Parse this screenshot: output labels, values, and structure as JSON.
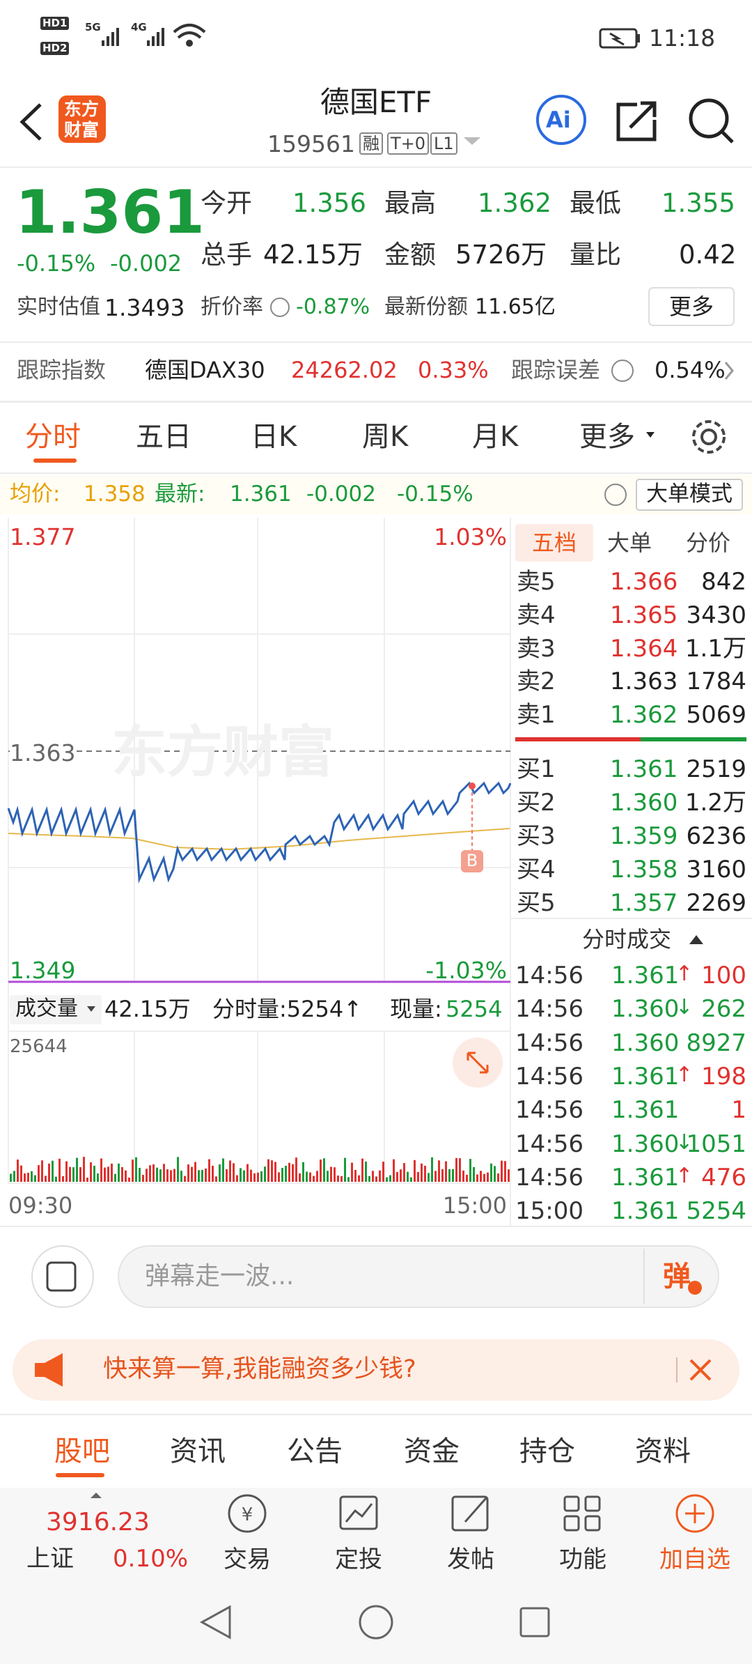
{
  "status": {
    "sims": [
      "HD1",
      "HD2"
    ],
    "network": [
      "5G",
      "4G"
    ],
    "time": "11:18"
  },
  "header": {
    "logo": [
      "东方",
      "财富"
    ],
    "title": "德国ETF",
    "code": "159561",
    "tags": [
      "融",
      "T+0",
      "L1"
    ],
    "ai": "Ai"
  },
  "quote": {
    "price": "1.361",
    "change_pct": "-0.15%",
    "change": "-0.002",
    "fields": [
      {
        "label": "今开",
        "value": "1.356"
      },
      {
        "label": "最高",
        "value": "1.362"
      },
      {
        "label": "最低",
        "value": "1.355"
      },
      {
        "label": "总手",
        "value": "42.15万"
      },
      {
        "label": "金额",
        "value": "5726万"
      },
      {
        "label": "量比",
        "value": "0.42"
      }
    ],
    "estimate": {
      "label": "实时估值",
      "value": "1.3493"
    },
    "premium": {
      "label": "折价率",
      "value": "-0.87%"
    },
    "shares": {
      "label": "最新份额",
      "value": "11.65亿"
    },
    "more": "更多"
  },
  "tracking": {
    "label": "跟踪指数",
    "index": "德国DAX30",
    "value": "24262.02",
    "pct": "0.33%",
    "error_label": "跟踪误差",
    "error": "0.54%"
  },
  "tabs": [
    "分时",
    "五日",
    "日K",
    "周K",
    "月K",
    "更多"
  ],
  "info": {
    "avg_label": "均价:",
    "avg": "1.358",
    "last_label": "最新:",
    "last": "1.361",
    "change": "-0.002",
    "pct": "-0.15%",
    "mode": "大单模式"
  },
  "chart": {
    "high": "1.377",
    "high_pct": "1.03%",
    "mid": "1.363",
    "low": "1.349",
    "low_pct": "-1.03%",
    "watermark": "东方财富",
    "marker": "B"
  },
  "volume": {
    "label": "成交量",
    "total": "42.15万",
    "bar_label": "分时量:5254↑",
    "cur_label": "现量:",
    "cur": "5254",
    "max": "25644",
    "start": "09:30",
    "end": "15:00"
  },
  "orderbook": {
    "tabs": [
      "五档",
      "大单",
      "分价"
    ],
    "asks": [
      {
        "label": "卖5",
        "price": "1.366",
        "vol": "842",
        "color": "#e0322f"
      },
      {
        "label": "卖4",
        "price": "1.365",
        "vol": "3430",
        "color": "#e0322f"
      },
      {
        "label": "卖3",
        "price": "1.364",
        "vol": "1.1万",
        "color": "#e0322f"
      },
      {
        "label": "卖2",
        "price": "1.363",
        "vol": "1784",
        "color": "#222222"
      },
      {
        "label": "卖1",
        "price": "1.362",
        "vol": "5069",
        "color": "#1a9a3c"
      }
    ],
    "bids": [
      {
        "label": "买1",
        "price": "1.361",
        "vol": "2519",
        "color": "#1a9a3c"
      },
      {
        "label": "买2",
        "price": "1.360",
        "vol": "1.2万",
        "color": "#1a9a3c"
      },
      {
        "label": "买3",
        "price": "1.359",
        "vol": "6236",
        "color": "#1a9a3c"
      },
      {
        "label": "买4",
        "price": "1.358",
        "vol": "3160",
        "color": "#1a9a3c"
      },
      {
        "label": "买5",
        "price": "1.357",
        "vol": "2269",
        "color": "#1a9a3c"
      }
    ]
  },
  "trades": {
    "title": "分时成交",
    "rows": [
      {
        "time": "14:56",
        "price": "1.361",
        "dir": "↑",
        "vol": "100",
        "color": "#e0322f"
      },
      {
        "time": "14:56",
        "price": "1.360",
        "dir": "↓",
        "vol": "262",
        "color": "#1a9a3c"
      },
      {
        "time": "14:56",
        "price": "1.360",
        "vol": "8927",
        "color": "#1a9a3c"
      },
      {
        "time": "14:56",
        "price": "1.361",
        "dir": "↑",
        "vol": "198",
        "color": "#e0322f"
      },
      {
        "time": "14:56",
        "price": "1.361",
        "vol": "1",
        "color": "#e0322f"
      },
      {
        "time": "14:56",
        "price": "1.360",
        "dir": "↓",
        "vol": "1051",
        "color": "#1a9a3c"
      },
      {
        "time": "14:56",
        "price": "1.361",
        "dir": "↑",
        "vol": "476",
        "color": "#e0322f"
      },
      {
        "time": "15:00",
        "price": "1.361",
        "vol": "5254",
        "color": "#1a9a3c"
      }
    ]
  },
  "comment": {
    "placeholder": "弹幕走一波...",
    "button": "弹"
  },
  "banner": {
    "text": "快来算一算,我能融资多少钱?"
  },
  "bottom_tabs": [
    "股吧",
    "资讯",
    "公告",
    "资金",
    "持仓",
    "资料"
  ],
  "toolbar": {
    "index_value": "3916.23",
    "index_name": "上证",
    "index_pct": "0.10%",
    "items": [
      "交易",
      "定投",
      "发帖",
      "功能",
      "加自选"
    ]
  }
}
